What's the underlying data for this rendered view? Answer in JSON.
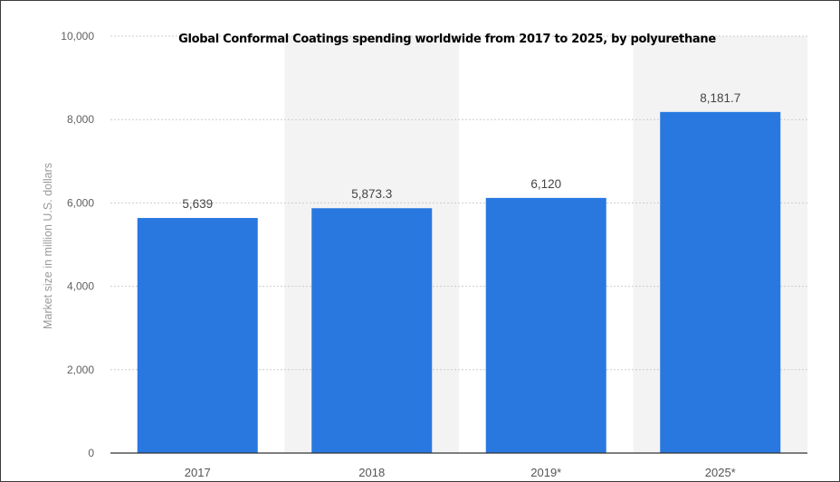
{
  "chart_data": {
    "type": "bar",
    "title": "Global Conformal Coatings spending worldwide from 2017 to 2025, by polyurethane",
    "xlabel": "",
    "ylabel": "Market size in million U.S. dollars",
    "categories": [
      "2017",
      "2018",
      "2019*",
      "2025*"
    ],
    "values": [
      5639,
      5873.3,
      6120,
      8181.7
    ],
    "value_labels": [
      "5,639",
      "5,873.3",
      "6,120",
      "8,181.7"
    ],
    "ylim": [
      0,
      10000
    ],
    "yticks": [
      0,
      2000,
      4000,
      6000,
      8000,
      10000
    ],
    "ytick_labels": [
      "0",
      "2,000",
      "4,000",
      "6,000",
      "8,000",
      "10,000"
    ],
    "grid": true,
    "legend": "none",
    "colors": {
      "bar": "#2878e0",
      "band": "#f3f3f3",
      "grid": "#cccccc",
      "axis": "#333333"
    }
  }
}
